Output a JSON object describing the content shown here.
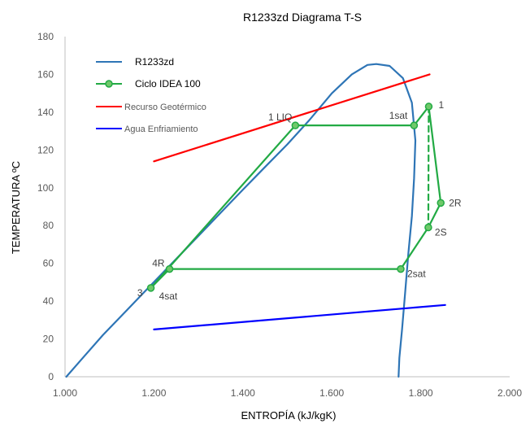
{
  "chart_data": {
    "type": "line",
    "title": "R1233zd Diagrama T-S",
    "xlabel": "ENTROPÍA (kJ/kgK)",
    "ylabel": "TEMPERATURA  ºC",
    "xlim": [
      1.0,
      2.0
    ],
    "ylim": [
      0,
      180
    ],
    "x_ticks": [
      "1.000",
      "1.200",
      "1.400",
      "1.600",
      "1.800",
      "2.000"
    ],
    "x_tick_values": [
      1.0,
      1.2,
      1.4,
      1.6,
      1.8,
      2.0
    ],
    "y_ticks": [
      "0",
      "20",
      "40",
      "60",
      "80",
      "100",
      "120",
      "140",
      "160",
      "180"
    ],
    "y_tick_values": [
      0,
      20,
      40,
      60,
      80,
      100,
      120,
      140,
      160,
      180
    ],
    "grid": false,
    "legend_position": "top-left",
    "series": [
      {
        "name": "R1233zd",
        "color": "#2e75b6",
        "style": "solid",
        "markers": false,
        "points": [
          [
            1.003,
            0
          ],
          [
            1.04,
            10
          ],
          [
            1.085,
            22
          ],
          [
            1.13,
            33
          ],
          [
            1.175,
            44
          ],
          [
            1.22,
            55
          ],
          [
            1.265,
            66
          ],
          [
            1.31,
            77
          ],
          [
            1.355,
            88
          ],
          [
            1.4,
            99
          ],
          [
            1.45,
            111
          ],
          [
            1.5,
            123
          ],
          [
            1.55,
            136
          ],
          [
            1.6,
            150
          ],
          [
            1.645,
            160
          ],
          [
            1.68,
            165
          ],
          [
            1.7,
            165.5
          ],
          [
            1.73,
            164.5
          ],
          [
            1.76,
            158
          ],
          [
            1.78,
            145
          ],
          [
            1.788,
            125
          ],
          [
            1.785,
            105
          ],
          [
            1.78,
            85
          ],
          [
            1.772,
            65
          ],
          [
            1.765,
            45
          ],
          [
            1.758,
            25
          ],
          [
            1.752,
            10
          ],
          [
            1.75,
            0
          ]
        ]
      },
      {
        "name": "Ciclo IDEA 100",
        "color": "#22aa44",
        "style": "solid",
        "markers": true,
        "points": [
          [
            1.193,
            47
          ],
          [
            1.235,
            57
          ],
          [
            1.755,
            57
          ],
          [
            1.817,
            79
          ],
          [
            1.845,
            92
          ],
          [
            1.818,
            143
          ],
          [
            1.785,
            133
          ],
          [
            1.518,
            133
          ],
          [
            1.193,
            47
          ]
        ]
      },
      {
        "name": "Recurso Geotérmico",
        "color": "#ff0000",
        "style": "solid",
        "markers": false,
        "points": [
          [
            1.2,
            114
          ],
          [
            1.82,
            160
          ]
        ]
      },
      {
        "name": "Agua Enfriamiento",
        "color": "#0000ff",
        "style": "solid",
        "markers": false,
        "points": [
          [
            1.2,
            25
          ],
          [
            1.855,
            38
          ]
        ]
      },
      {
        "name": "",
        "color": "#22aa44",
        "style": "dashed",
        "markers": false,
        "points": [
          [
            1.818,
            143
          ],
          [
            1.817,
            79
          ]
        ]
      }
    ],
    "annotations": [
      {
        "text": "1 LIQ",
        "x": 1.518,
        "y": 133,
        "anchor": "end"
      },
      {
        "text": "1sat",
        "x": 1.785,
        "y": 133,
        "anchor": "end"
      },
      {
        "text": "1",
        "x": 1.818,
        "y": 143,
        "anchor": "start"
      },
      {
        "text": "2R",
        "x": 1.845,
        "y": 92,
        "anchor": "start"
      },
      {
        "text": "2S",
        "x": 1.817,
        "y": 79,
        "anchor": "start"
      },
      {
        "text": "2sat",
        "x": 1.755,
        "y": 57,
        "anchor": "start"
      },
      {
        "text": "4R",
        "x": 1.235,
        "y": 57,
        "anchor": "end"
      },
      {
        "text": "3",
        "x": 1.193,
        "y": 47,
        "anchor": "end"
      },
      {
        "text": "4sat",
        "x": 1.193,
        "y": 47,
        "anchor": "start"
      }
    ]
  }
}
